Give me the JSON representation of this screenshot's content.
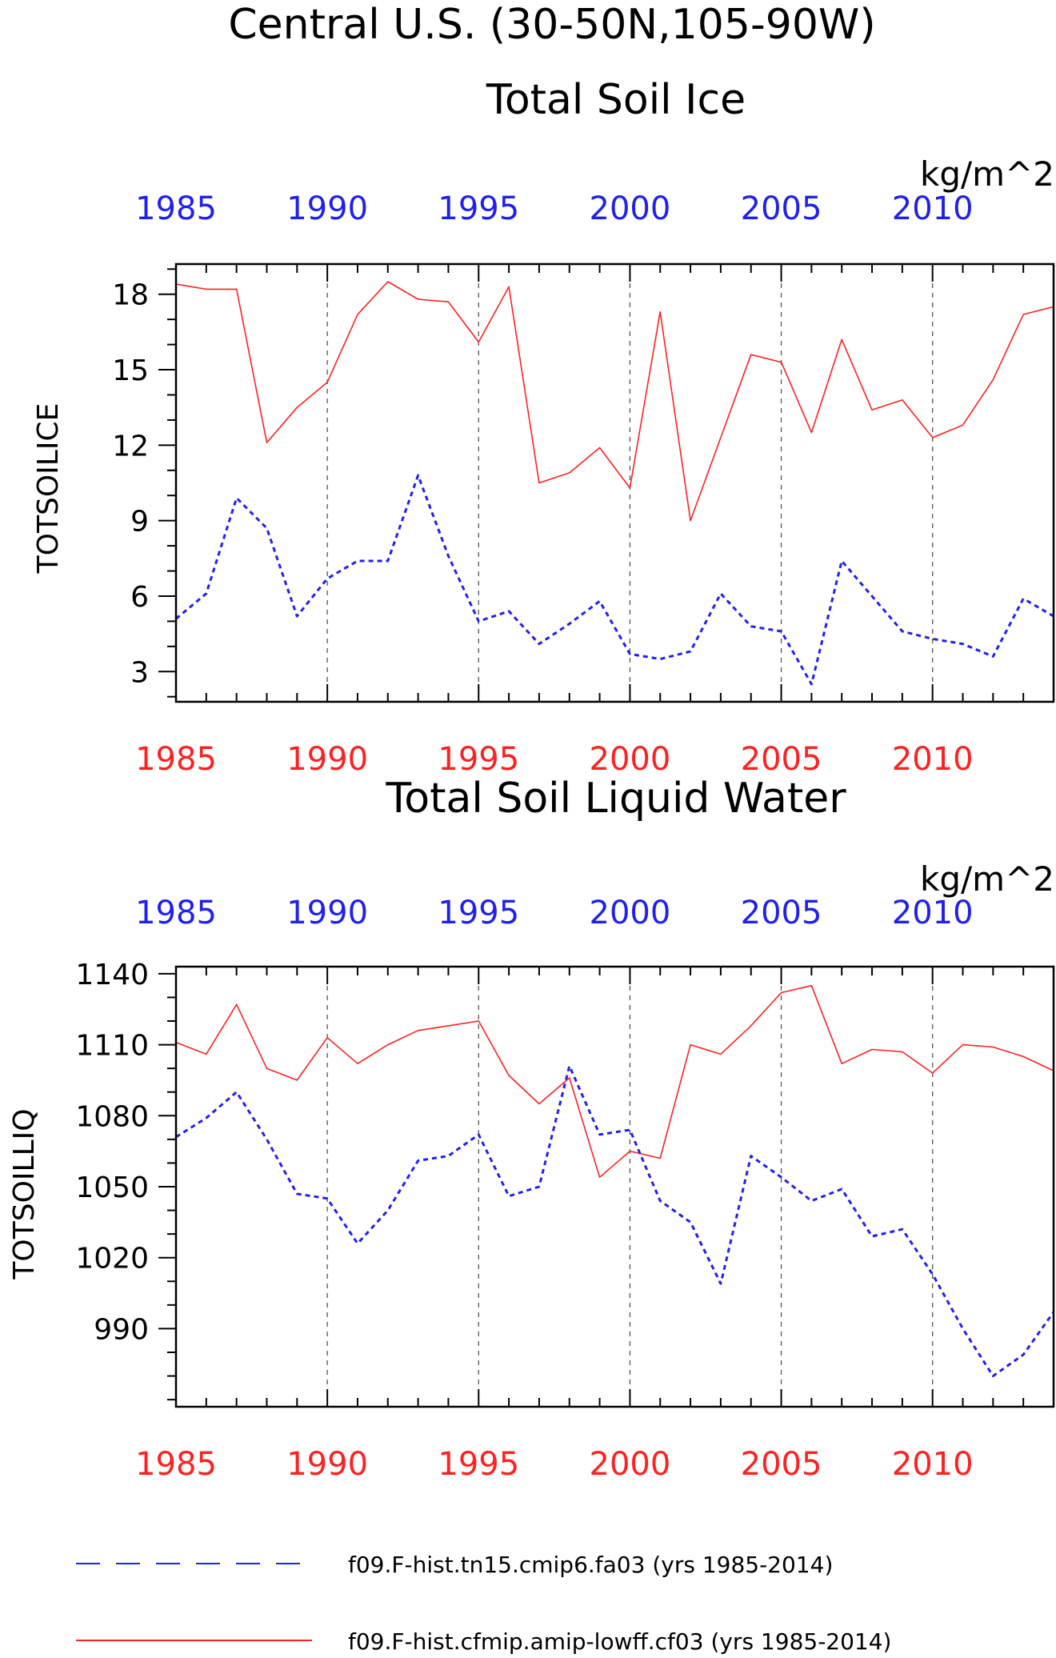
{
  "figure": {
    "title": "Central U.S. (30-50N,105-90W)"
  },
  "colors": {
    "red": "#ff2020",
    "blue": "#2020ee",
    "axis": "#000000",
    "grid": "#555555"
  },
  "legend": [
    {
      "label": "f09.F-hist.tn15.cmip6.fa03 (yrs 1985-2014)",
      "color": "#2020ee",
      "style": "dashed"
    },
    {
      "label": "f09.F-hist.cfmip.amip-lowff.cf03 (yrs 1985-2014)",
      "color": "#ff2020",
      "style": "solid"
    }
  ],
  "chart_data": [
    {
      "type": "line",
      "title": "Total Soil Ice",
      "units": "kg/m^2",
      "ylabel": "TOTSOILICE",
      "xlim": [
        1985,
        2014
      ],
      "ylim": [
        1.8,
        19.2
      ],
      "yticks": [
        3,
        6,
        9,
        12,
        15,
        18
      ],
      "xticks": [
        1985,
        1990,
        1995,
        2000,
        2005,
        2010
      ],
      "grid": "vertical dashed at major x ticks",
      "x": [
        1985,
        1986,
        1987,
        1988,
        1989,
        1990,
        1991,
        1992,
        1993,
        1994,
        1995,
        1996,
        1997,
        1998,
        1999,
        2000,
        2001,
        2002,
        2003,
        2004,
        2005,
        2006,
        2007,
        2008,
        2009,
        2010,
        2011,
        2012,
        2013,
        2014
      ],
      "series": [
        {
          "name": "f09.F-hist.cfmip.amip-lowff.cf03 (yrs 1985-2014)",
          "color": "#ff2020",
          "style": "solid",
          "values": [
            18.4,
            18.2,
            18.2,
            12.1,
            13.5,
            14.5,
            17.2,
            18.5,
            17.8,
            17.7,
            16.1,
            18.3,
            10.5,
            10.9,
            11.9,
            10.3,
            17.3,
            9.0,
            12.3,
            15.6,
            15.3,
            12.5,
            16.2,
            13.4,
            13.8,
            12.3,
            12.8,
            14.6,
            17.2,
            17.5
          ]
        },
        {
          "name": "f09.F-hist.tn15.cmip6.fa03 (yrs 1985-2014)",
          "color": "#2020ee",
          "style": "dashed",
          "values": [
            5.1,
            6.1,
            9.9,
            8.7,
            5.2,
            6.7,
            7.4,
            7.4,
            10.8,
            7.6,
            5.0,
            5.4,
            4.1,
            4.9,
            5.8,
            3.7,
            3.5,
            3.8,
            6.1,
            4.8,
            4.6,
            2.5,
            7.4,
            6.0,
            4.6,
            4.3,
            4.1,
            3.6,
            5.9,
            5.2
          ]
        }
      ]
    },
    {
      "type": "line",
      "title": "Total Soil Liquid Water",
      "units": "kg/m^2",
      "ylabel": "TOTSOILLIQ",
      "xlim": [
        1985,
        2014
      ],
      "ylim": [
        957,
        1143
      ],
      "yticks": [
        990,
        1020,
        1050,
        1080,
        1110,
        1140
      ],
      "xticks": [
        1985,
        1990,
        1995,
        2000,
        2005,
        2010
      ],
      "grid": "vertical dashed at major x ticks",
      "x": [
        1985,
        1986,
        1987,
        1988,
        1989,
        1990,
        1991,
        1992,
        1993,
        1994,
        1995,
        1996,
        1997,
        1998,
        1999,
        2000,
        2001,
        2002,
        2003,
        2004,
        2005,
        2006,
        2007,
        2008,
        2009,
        2010,
        2011,
        2012,
        2013,
        2014
      ],
      "series": [
        {
          "name": "f09.F-hist.cfmip.amip-lowff.cf03 (yrs 1985-2014)",
          "color": "#ff2020",
          "style": "solid",
          "values": [
            1111,
            1106,
            1127,
            1100,
            1095,
            1113,
            1102,
            1110,
            1116,
            1118,
            1120,
            1097,
            1085,
            1096,
            1054,
            1065,
            1062,
            1110,
            1106,
            1118,
            1132,
            1135,
            1102,
            1108,
            1107,
            1098,
            1110,
            1109,
            1105,
            1099
          ]
        },
        {
          "name": "f09.F-hist.tn15.cmip6.fa03 (yrs 1985-2014)",
          "color": "#2020ee",
          "style": "dashed",
          "values": [
            1071,
            1079,
            1090,
            1070,
            1047,
            1045,
            1026,
            1040,
            1061,
            1063,
            1072,
            1046,
            1050,
            1101,
            1072,
            1074,
            1044,
            1035,
            1009,
            1063,
            1054,
            1044,
            1049,
            1029,
            1032,
            1013,
            990,
            970,
            979,
            997
          ]
        }
      ]
    }
  ]
}
